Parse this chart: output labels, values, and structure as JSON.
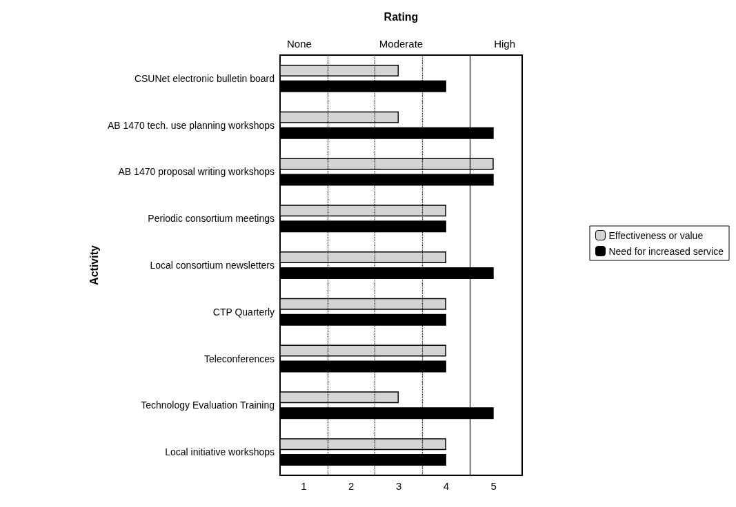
{
  "chart_data": {
    "type": "bar",
    "orientation": "horizontal",
    "ylabel": "Activity",
    "x2label": "Rating",
    "annotations": [
      "None",
      "Moderate",
      "High"
    ],
    "categories": [
      "CSUNet electronic bulletin board",
      "AB 1470 tech. use planning workshops",
      "AB 1470 proposal writing workshops",
      "Periodic consortium meetings",
      "Local consortium newsletters",
      "CTP Quarterly",
      "Teleconferences",
      "Technology Evaluation Training",
      "Local initiative workshops"
    ],
    "series": [
      {
        "name": "Effectiveness or value",
        "color": "#d4d4d4",
        "values": [
          3,
          3,
          5,
          4,
          4,
          4,
          4,
          3,
          4
        ]
      },
      {
        "name": "Need for increased service",
        "color": "#000000",
        "values": [
          4,
          5,
          5,
          4,
          5,
          4,
          4,
          5,
          4
        ]
      }
    ],
    "xlim": [
      0.5,
      5.6
    ],
    "xticks": [
      1,
      2,
      3,
      4,
      5
    ],
    "ref_lines": [
      {
        "axis": "x",
        "value": 1.5,
        "line_style": "dotted",
        "color": "#000000"
      },
      {
        "axis": "x",
        "value": 2.5,
        "line_style": "dotted",
        "color": "#000000"
      },
      {
        "axis": "x",
        "value": 3.5,
        "line_style": "dotted",
        "color": "#000000"
      },
      {
        "axis": "x",
        "value": 4.5,
        "line_style": "solid",
        "color": "#000000"
      }
    ],
    "grid": false,
    "legend": "right"
  }
}
